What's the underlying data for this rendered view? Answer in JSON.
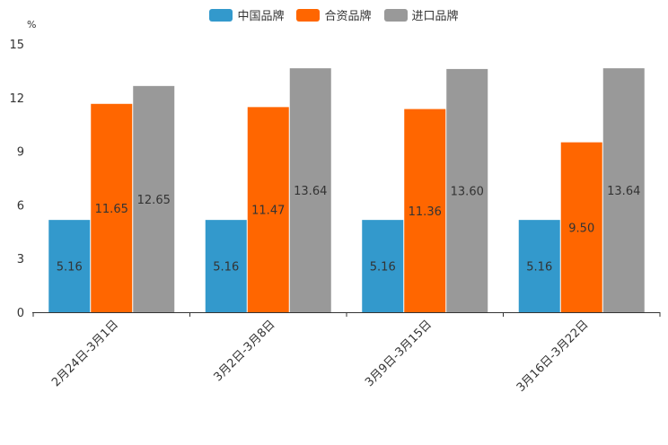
{
  "chart_data": {
    "type": "bar",
    "unit": "%",
    "categories": [
      "2月24日-3月1日",
      "3月2日-3月8日",
      "3月9日-3月15日",
      "3月16日-3月22日"
    ],
    "series": [
      {
        "name": "中国品牌",
        "color": "#3399cc",
        "values": [
          5.16,
          5.16,
          5.16,
          5.16
        ]
      },
      {
        "name": "合资品牌",
        "color": "#ff6600",
        "values": [
          11.65,
          11.47,
          11.36,
          9.5
        ]
      },
      {
        "name": "进口品牌",
        "color": "#999999",
        "values": [
          12.65,
          13.64,
          13.6,
          13.64
        ]
      }
    ],
    "ylim": [
      0,
      15
    ],
    "yticks": [
      0,
      3,
      6,
      9,
      12,
      15
    ],
    "legend_position": "top-center"
  }
}
